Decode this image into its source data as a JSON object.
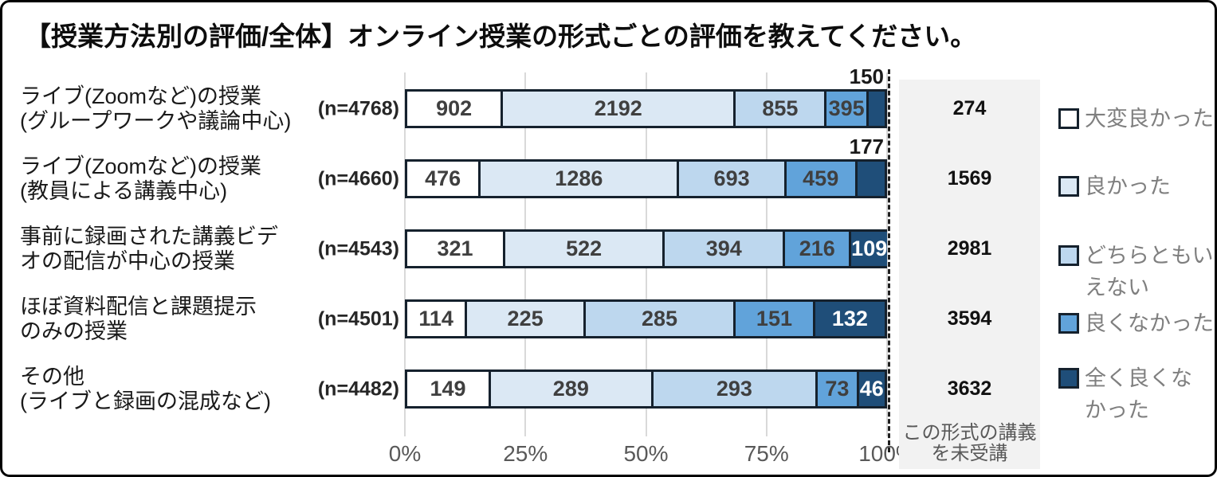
{
  "colors": {
    "segment_fills": [
      "#ffffff",
      "#dbe8f4",
      "#bdd7ee",
      "#61a3da",
      "#1f4e79"
    ],
    "bar_border": "#15212d",
    "grid": "#d9d9d9",
    "unattended_box": "#f2f2f2",
    "value_dark": "#3f3f3f",
    "value_light": "#ffffff",
    "axis_text": "#595959",
    "legend_text": "#7f7f7f"
  },
  "chart_data": {
    "type": "bar",
    "variant": "100%-stacked-horizontal",
    "title": "【授業方法別の評価/全体】オンライン授業の形式ごとの評価を教えてください。",
    "series_names": [
      "大変良かった",
      "良かった",
      "どちらともいえない",
      "良くなかった",
      "全く良くなかった"
    ],
    "categories": [
      "ライブ(Zoomなど)の授業(グループワークや議論中心)",
      "ライブ(Zoomなど)の授業(教員による講義中心)",
      "事前に録画された講義ビデオの配信が中心の授業",
      "ほぼ資料配信と課題提示のみの授業",
      "その他(ライブと録画の混成など)"
    ],
    "rows": [
      {
        "label_lines": [
          "ライブ(Zoomなど)の授業",
          "(グループワークや議論中心)"
        ],
        "n_label": "(n=4768)",
        "n": 4768,
        "values": [
          902,
          2192,
          855,
          395,
          150
        ],
        "unattended": 274,
        "last_label_above": true
      },
      {
        "label_lines": [
          "ライブ(Zoomなど)の授業",
          "(教員による講義中心)"
        ],
        "n_label": "(n=4660)",
        "n": 4660,
        "values": [
          476,
          1286,
          693,
          459,
          177
        ],
        "unattended": 1569,
        "last_label_above": true
      },
      {
        "label_lines": [
          "事前に録画された講義ビデ",
          "オの配信が中心の授業"
        ],
        "n_label": "(n=4543)",
        "n": 4543,
        "values": [
          321,
          522,
          394,
          216,
          109
        ],
        "unattended": 2981,
        "last_label_above": false
      },
      {
        "label_lines": [
          "ほぼ資料配信と課題提示",
          "のみの授業"
        ],
        "n_label": "(n=4501)",
        "n": 4501,
        "values": [
          114,
          225,
          285,
          151,
          132
        ],
        "unattended": 3594,
        "last_label_above": false
      },
      {
        "label_lines": [
          "その他",
          "(ライブと録画の混成など)"
        ],
        "n_label": "(n=4482)",
        "n": 4482,
        "values": [
          149,
          289,
          293,
          73,
          46
        ],
        "unattended": 3632,
        "last_label_above": false
      }
    ],
    "x_ticks": [
      "0%",
      "25%",
      "50%",
      "75%",
      "100%"
    ],
    "xlim": [
      0,
      100
    ],
    "grid": true,
    "legend_position": "right",
    "unattended_column": {
      "caption": "この形式の講義を未受講",
      "caption_lines": [
        "この形式の講義",
        "を未受講"
      ],
      "values": [
        274,
        1569,
        2981,
        3594,
        3632
      ]
    }
  },
  "legend": {
    "items": [
      {
        "label": "大変良かった",
        "lines": [
          "大変良かった"
        ]
      },
      {
        "label": "良かった",
        "lines": [
          "良かった"
        ]
      },
      {
        "label": "どちらともいえない",
        "lines": [
          "どちらともい",
          "えない"
        ]
      },
      {
        "label": "良くなかった",
        "lines": [
          "良くなかった"
        ]
      },
      {
        "label": "全く良くなかった",
        "lines": [
          "全く良くな",
          "かった"
        ]
      }
    ]
  }
}
